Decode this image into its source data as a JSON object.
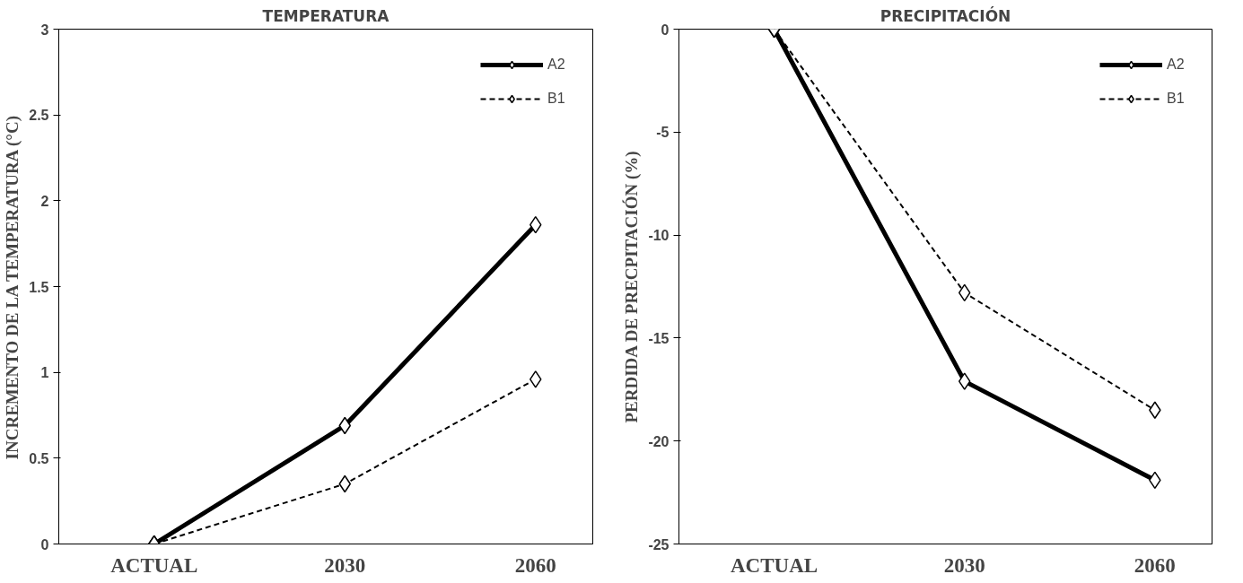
{
  "chart_data": [
    {
      "type": "line",
      "title": "TEMPERATURA",
      "ylabel": "INCREMENTO DE LA TEMPERATURA (°C)",
      "categories": [
        "ACTUAL",
        "2030",
        "2060"
      ],
      "ylim": [
        0,
        3
      ],
      "yticks": [
        0,
        0.5,
        1,
        1.5,
        2,
        2.5,
        3
      ],
      "grid": false,
      "legend": "top right",
      "marker": "diamond",
      "series": [
        {
          "name": "A2",
          "color": "#000000",
          "values": [
            0,
            0.69,
            1.86
          ],
          "line_style": "solid"
        },
        {
          "name": "B1",
          "color": "#000000",
          "values": [
            0,
            0.35,
            0.96
          ],
          "line_style": "dashed"
        }
      ]
    },
    {
      "type": "line",
      "title": "PRECIPITACIÓN",
      "ylabel": "PERDIDA DE PRECPITACIÓN (%)",
      "categories": [
        "ACTUAL",
        "2030",
        "2060"
      ],
      "ylim": [
        -25,
        0
      ],
      "yticks": [
        0,
        -5,
        -10,
        -15,
        -20,
        -25
      ],
      "grid": false,
      "legend": "top right",
      "marker": "diamond",
      "series": [
        {
          "name": "A2",
          "color": "#000000",
          "values": [
            0,
            -17.1,
            -21.9
          ],
          "line_style": "solid"
        },
        {
          "name": "B1",
          "color": "#000000",
          "values": [
            0,
            -12.8,
            -18.5
          ],
          "line_style": "dashed"
        }
      ]
    }
  ]
}
